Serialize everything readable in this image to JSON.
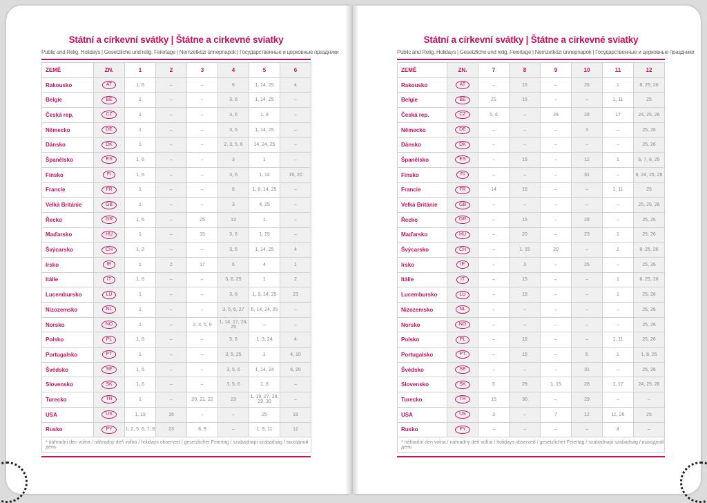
{
  "title": "Státní a církevní svátky | Štátne a cirkevné sviatky",
  "subtitle": "Public and Relig. Holidays | Gesetzliche und relig. Feiertage | Nemzetközi ünnepnapok | Государственные и церковные праздники",
  "col_country": "ZEMĚ",
  "col_code": "ZN.",
  "footnote": "* náhradní den volna / náhradný deň voľna / holidays observed / gesetzlicher Feiertag / szabadnapi szabadság / выходной день",
  "accent": "#c8125f",
  "left": {
    "months": [
      "1",
      "2",
      "3",
      "4",
      "5",
      "6"
    ],
    "rows": [
      [
        "Rakousko",
        "AT",
        "1, 6",
        "–",
        "–",
        "6",
        "1, 14, 25",
        "4"
      ],
      [
        "Belgie",
        "BE",
        "1",
        "–",
        "–",
        "3, 6",
        "1, 14, 25",
        "–"
      ],
      [
        "Česká rep.",
        "CZ",
        "1",
        "–",
        "–",
        "3, 6",
        "1, 8",
        "–"
      ],
      [
        "Německo",
        "DE",
        "1",
        "–",
        "–",
        "3, 6",
        "1, 14, 25",
        "–"
      ],
      [
        "Dánsko",
        "DK",
        "1",
        "–",
        "–",
        "2, 3, 5, 6",
        "14, 24, 25",
        "–"
      ],
      [
        "Španělsko",
        "ES",
        "1, 6",
        "–",
        "–",
        "3",
        "1",
        "–"
      ],
      [
        "Finsko",
        "FI",
        "1, 6",
        "–",
        "–",
        "3, 6",
        "1, 14",
        "19, 20"
      ],
      [
        "Francie",
        "FR",
        "1",
        "–",
        "–",
        "6",
        "1, 8, 14, 25",
        "–"
      ],
      [
        "Velká Británie",
        "GB",
        "1",
        "–",
        "–",
        "3",
        "4, 25",
        "–"
      ],
      [
        "Řecko",
        "GR",
        "1, 6",
        "–",
        "25",
        "13",
        "1",
        "–"
      ],
      [
        "Maďarsko",
        "HU",
        "1",
        "–",
        "15",
        "3, 6",
        "1, 25",
        "–"
      ],
      [
        "Švýcarsko",
        "CH",
        "1, 2",
        "–",
        "–",
        "3, 6",
        "1, 14, 25",
        "4"
      ],
      [
        "Irsko",
        "IE",
        "1",
        "2",
        "17",
        "6",
        "4",
        "1"
      ],
      [
        "Itálie",
        "IT",
        "1, 6",
        "–",
        "–",
        "5, 6, 25",
        "1",
        "2"
      ],
      [
        "Lucembursko",
        "LU",
        "1",
        "–",
        "–",
        "3, 6",
        "1, 9, 14, 25",
        "23"
      ],
      [
        "Nizozemsko",
        "NL",
        "1",
        "–",
        "–",
        "3, 5, 6, 27",
        "5, 14, 24, 25",
        "–"
      ],
      [
        "Norsko",
        "NO",
        "1",
        "–",
        "2, 3, 5, 6",
        "1, 14, 17, 24, 25",
        "–",
        "–"
      ],
      [
        "Polsko",
        "PL",
        "1, 6",
        "–",
        "–",
        "5, 6",
        "1, 3, 24",
        "4"
      ],
      [
        "Portugalsko",
        "PT",
        "1",
        "–",
        "–",
        "3, 5, 25",
        "1",
        "4, 10"
      ],
      [
        "Švédsko",
        "SE",
        "1, 6",
        "–",
        "–",
        "3, 5, 6",
        "1, 14, 24",
        "6, 20"
      ],
      [
        "Slovensko",
        "SK",
        "1, 6",
        "–",
        "–",
        "3, 5, 6",
        "1, 8",
        "–"
      ],
      [
        "Turecko",
        "TR",
        "1",
        "–",
        "20, 21, 22",
        "23",
        "1, 19, 27, 28, 29, 30",
        "–"
      ],
      [
        "USA",
        "US",
        "1, 19",
        "16",
        "–",
        "–",
        "25",
        "19"
      ],
      [
        "Rusko",
        "PY",
        "1, 2, 5, 6, 7, 8",
        "23",
        "8, 9",
        "–",
        "1, 9, 11",
        "12"
      ]
    ]
  },
  "right": {
    "months": [
      "7",
      "8",
      "9",
      "10",
      "11",
      "12"
    ],
    "rows": [
      [
        "Rakousko",
        "AT",
        "–",
        "15",
        "–",
        "26",
        "1",
        "8, 25, 26"
      ],
      [
        "Belgie",
        "BE",
        "21",
        "15",
        "–",
        "–",
        "1, 11",
        "25"
      ],
      [
        "Česká rep.",
        "CZ",
        "5, 6",
        "–",
        "28",
        "28",
        "17",
        "24, 25, 26"
      ],
      [
        "Německo",
        "DE",
        "–",
        "–",
        "–",
        "3",
        "–",
        "25, 26"
      ],
      [
        "Dánsko",
        "DK",
        "–",
        "–",
        "–",
        "–",
        "–",
        "25, 26"
      ],
      [
        "Španělsko",
        "ES",
        "–",
        "15",
        "–",
        "12",
        "1",
        "6, 7, 8, 25"
      ],
      [
        "Finsko",
        "FI",
        "–",
        "–",
        "–",
        "31",
        "–",
        "6, 24, 25, 26"
      ],
      [
        "Francie",
        "FR",
        "14",
        "15",
        "–",
        "–",
        "1, 11",
        "25"
      ],
      [
        "Velká Británie",
        "GB",
        "–",
        "–",
        "–",
        "–",
        "–",
        "25, 26, 28"
      ],
      [
        "Řecko",
        "GR",
        "–",
        "15",
        "–",
        "28",
        "–",
        "25, 26"
      ],
      [
        "Maďarsko",
        "HU",
        "–",
        "20",
        "–",
        "23",
        "1",
        "25, 26"
      ],
      [
        "Švýcarsko",
        "CH",
        "–",
        "1, 15",
        "20",
        "–",
        "1",
        "8, 25, 26"
      ],
      [
        "Irsko",
        "IE",
        "–",
        "3",
        "–",
        "26",
        "–",
        "25, 26"
      ],
      [
        "Itálie",
        "IT",
        "–",
        "15",
        "–",
        "–",
        "1",
        "8, 25, 26"
      ],
      [
        "Lucembursko",
        "LU",
        "–",
        "15",
        "–",
        "–",
        "1",
        "25, 26"
      ],
      [
        "Nizozemsko",
        "NL",
        "–",
        "–",
        "–",
        "–",
        "–",
        "25, 26"
      ],
      [
        "Norsko",
        "NO",
        "–",
        "–",
        "–",
        "–",
        "–",
        "25, 26"
      ],
      [
        "Polsko",
        "PL",
        "–",
        "15",
        "–",
        "–",
        "1, 11",
        "25, 26"
      ],
      [
        "Portugalsko",
        "PT",
        "–",
        "15",
        "–",
        "5",
        "1",
        "1, 8, 25"
      ],
      [
        "Švédsko",
        "SE",
        "–",
        "–",
        "–",
        "31",
        "–",
        "25, 26"
      ],
      [
        "Slovensko",
        "SK",
        "5",
        "29",
        "1, 15",
        "28",
        "1, 17",
        "24, 25, 26"
      ],
      [
        "Turecko",
        "TR",
        "15",
        "30",
        "–",
        "29",
        "–",
        "–"
      ],
      [
        "USA",
        "US",
        "3",
        "–",
        "7",
        "12",
        "11, 26",
        "25"
      ],
      [
        "Rusko",
        "PY",
        "–",
        "–",
        "–",
        "–",
        "4",
        "–"
      ]
    ]
  }
}
